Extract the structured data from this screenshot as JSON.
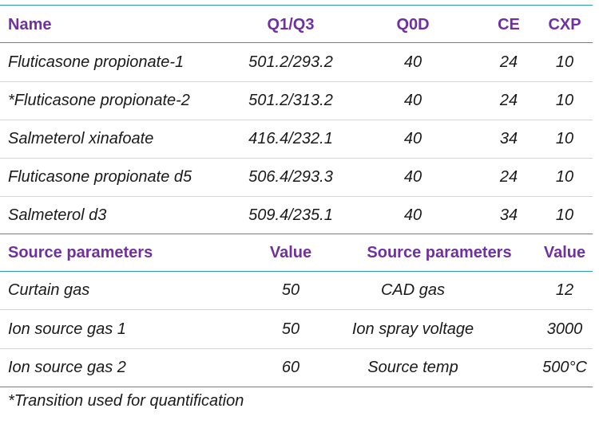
{
  "header": {
    "name": "Name",
    "q1q3": "Q1/Q3",
    "q0d": "Q0D",
    "ce": "CE",
    "cxp": "CXP"
  },
  "compounds": [
    {
      "name": "Fluticasone propionate-1",
      "q1q3": "501.2/293.2",
      "q0d": "40",
      "ce": "24",
      "cxp": "10"
    },
    {
      "name": "*Fluticasone propionate-2",
      "q1q3": "501.2/313.2",
      "q0d": "40",
      "ce": "24",
      "cxp": "10"
    },
    {
      "name": "Salmeterol xinafoate",
      "q1q3": "416.4/232.1",
      "q0d": "40",
      "ce": "34",
      "cxp": "10"
    },
    {
      "name": "Fluticasone propionate d5",
      "q1q3": "506.4/293.3",
      "q0d": "40",
      "ce": "24",
      "cxp": "10"
    },
    {
      "name": "Salmeterol d3",
      "q1q3": "509.4/235.1",
      "q0d": "40",
      "ce": "34",
      "cxp": "10"
    }
  ],
  "source_header": {
    "param1": "Source parameters",
    "value1": "Value",
    "param2": "Source parameters",
    "value2": "Value"
  },
  "source_rows": [
    {
      "param1": "Curtain gas",
      "value1": "50",
      "param2": "CAD gas",
      "value2": "12"
    },
    {
      "param1": "Ion source gas 1",
      "value1": "50",
      "param2": "Ion spray voltage",
      "value2": "3000"
    },
    {
      "param1": "Ion source gas 2",
      "value1": "60",
      "param2": "Source temp",
      "value2": "500°C"
    }
  ],
  "footnote": "*Transition used for quantification",
  "colors": {
    "header_text": "#7030a0",
    "rule_teal": "#2e9ab0",
    "rule_gray": "#d4d4d4"
  }
}
